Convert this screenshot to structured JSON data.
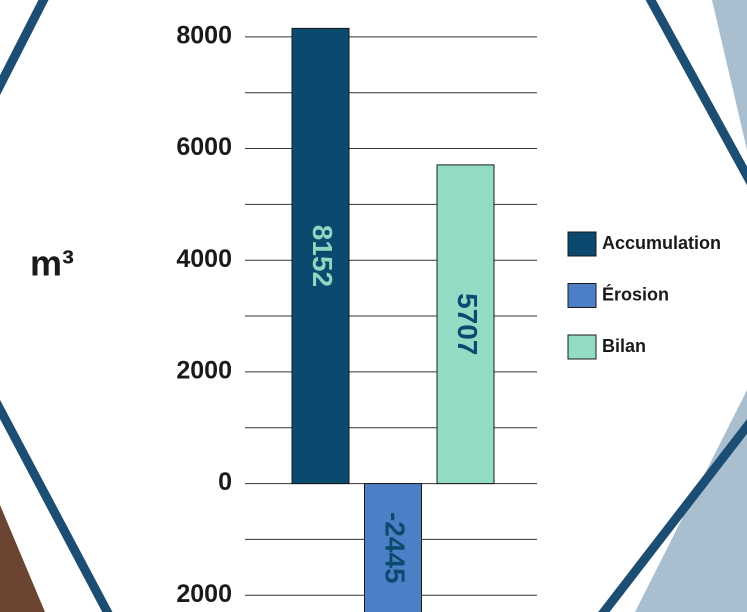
{
  "chart_data": {
    "type": "bar",
    "y_label": "m³",
    "series": [
      {
        "name": "Accumulation",
        "color": "#0b4a6f",
        "label_color": "#8fd7c3",
        "values": [
          8152
        ]
      },
      {
        "name": "Érosion",
        "color": "#4d7fc6",
        "label_color": "#0b4a6f",
        "values": [
          -2445
        ]
      },
      {
        "name": "Bilan",
        "color": "#92dcc6",
        "label_color": "#0b4a6f",
        "values": [
          5707
        ]
      }
    ],
    "ylim": [
      -2300,
      8660
    ],
    "yticks": [
      {
        "value": -2000,
        "label": "2000"
      },
      0,
      2000,
      4000,
      6000,
      8000
    ],
    "minor_yticks": [
      -1000,
      1000,
      3000,
      5000,
      7000
    ],
    "grid": true
  }
}
